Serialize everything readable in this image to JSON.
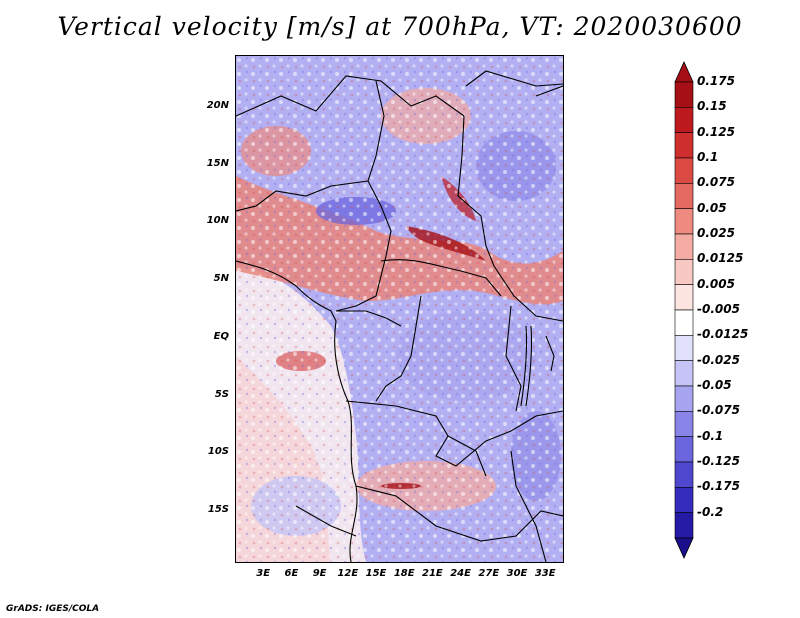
{
  "title": "Vertical velocity [m/s] at 700hPa, VT: 2020030600",
  "footer": "GrADS: IGES/COLA",
  "map": {
    "variable": "Vertical velocity",
    "units": "m/s",
    "level": "700hPa",
    "valid_time": "2020030600",
    "lat_range": [
      -19.5,
      24.5
    ],
    "lon_range": [
      0,
      35
    ],
    "lat_ticks": [
      {
        "value": 20,
        "label": "20N"
      },
      {
        "value": 15,
        "label": "15N"
      },
      {
        "value": 10,
        "label": "10N"
      },
      {
        "value": 5,
        "label": "5N"
      },
      {
        "value": 0,
        "label": "EQ"
      },
      {
        "value": -5,
        "label": "5S"
      },
      {
        "value": -10,
        "label": "10S"
      },
      {
        "value": -15,
        "label": "15S"
      }
    ],
    "lon_ticks": [
      {
        "value": 3,
        "label": "3E"
      },
      {
        "value": 6,
        "label": "6E"
      },
      {
        "value": 9,
        "label": "9E"
      },
      {
        "value": 12,
        "label": "12E"
      },
      {
        "value": 15,
        "label": "15E"
      },
      {
        "value": 18,
        "label": "18E"
      },
      {
        "value": 21,
        "label": "21E"
      },
      {
        "value": 24,
        "label": "24E"
      },
      {
        "value": 27,
        "label": "27E"
      },
      {
        "value": 30,
        "label": "30E"
      },
      {
        "value": 33,
        "label": "33E"
      }
    ]
  },
  "colorbar": {
    "upper_arrow_color": "#a50f15",
    "lower_arrow_color": "#1a0f8c",
    "levels": [
      {
        "label": "0.175",
        "color": "#a50f15"
      },
      {
        "label": "0.15",
        "color": "#bd1a1f"
      },
      {
        "label": "0.125",
        "color": "#cf2e2e"
      },
      {
        "label": "0.1",
        "color": "#dc4a44"
      },
      {
        "label": "0.075",
        "color": "#e56a60"
      },
      {
        "label": "0.05",
        "color": "#ee8a80"
      },
      {
        "label": "0.025",
        "color": "#f4aba3"
      },
      {
        "label": "0.0125",
        "color": "#f8c9c3"
      },
      {
        "label": "0.005",
        "color": "#fce4e0"
      },
      {
        "label": "-0.005",
        "color": "#ffffff"
      },
      {
        "label": "-0.0125",
        "color": "#e2e1fb"
      },
      {
        "label": "-0.025",
        "color": "#c6c4f6"
      },
      {
        "label": "-0.05",
        "color": "#a8a5f0"
      },
      {
        "label": "-0.075",
        "color": "#8985e8"
      },
      {
        "label": "-0.1",
        "color": "#6b66dd"
      },
      {
        "label": "-0.125",
        "color": "#4f48cf"
      },
      {
        "label": "-0.175",
        "color": "#352cbd"
      },
      {
        "label": "-0.2",
        "color": "#241aa6"
      }
    ]
  }
}
